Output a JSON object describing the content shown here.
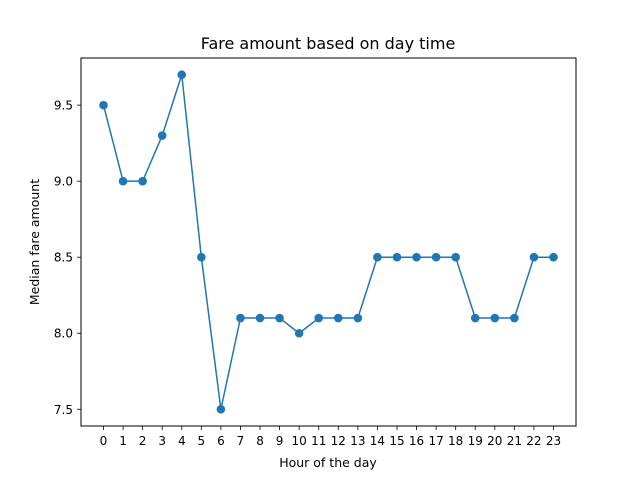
{
  "chart_data": {
    "type": "line",
    "title": "Fare amount based on day time",
    "xlabel": "Hour of the day",
    "ylabel": "Median fare amount",
    "x": [
      0,
      1,
      2,
      3,
      4,
      5,
      6,
      7,
      8,
      9,
      10,
      11,
      12,
      13,
      14,
      15,
      16,
      17,
      18,
      19,
      20,
      21,
      22,
      23
    ],
    "series": [
      {
        "values": [
          9.5,
          9.0,
          9.0,
          9.3,
          9.7,
          8.5,
          7.5,
          8.1,
          8.1,
          8.1,
          8.0,
          8.1,
          8.1,
          8.1,
          8.5,
          8.5,
          8.5,
          8.5,
          8.5,
          8.1,
          8.1,
          8.1,
          8.5,
          8.5
        ],
        "color": "#1f77b4",
        "marker": "circle"
      }
    ],
    "xlim": [
      -1.15,
      24.15
    ],
    "ylim": [
      7.39,
      9.81
    ],
    "xticks": [
      "0",
      "1",
      "2",
      "3",
      "4",
      "5",
      "6",
      "7",
      "8",
      "9",
      "10",
      "11",
      "12",
      "13",
      "14",
      "15",
      "16",
      "17",
      "18",
      "19",
      "20",
      "21",
      "22",
      "23"
    ],
    "yticks": [
      {
        "value": 7.5,
        "label": "7.5"
      },
      {
        "value": 8.0,
        "label": "8.0"
      },
      {
        "value": 8.5,
        "label": "8.5"
      },
      {
        "value": 9.0,
        "label": "9.0"
      },
      {
        "value": 9.5,
        "label": "9.5"
      }
    ],
    "grid": false,
    "legend": "none"
  }
}
